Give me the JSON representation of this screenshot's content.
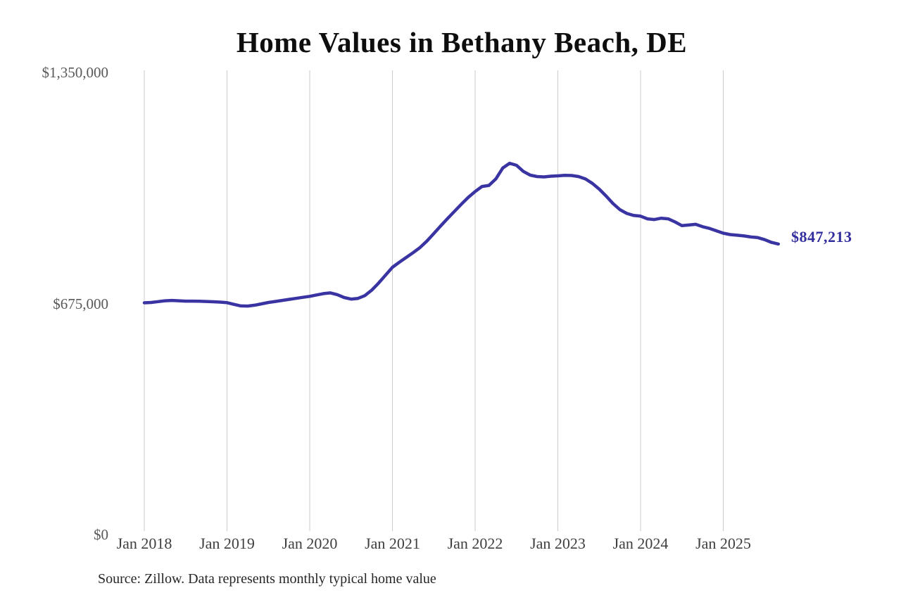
{
  "chart_data": {
    "type": "line",
    "title": "Home Values in Bethany Beach, DE",
    "source_note": "Source: Zillow. Data represents monthly typical home value",
    "end_label": "$847,213",
    "end_value": 847213,
    "line_color": "#3a34a3",
    "end_label_color": "#332e9d",
    "grid_color": "#cbcbcb",
    "legend_position": "none",
    "grid": "vertical-only",
    "y_axis": {
      "min": 0,
      "max": 1350000,
      "ticks": [
        {
          "value": 1350000,
          "label": "$1,350,000"
        },
        {
          "value": 675000,
          "label": "$675,000"
        },
        {
          "value": 0,
          "label": "$0"
        }
      ]
    },
    "x_axis": {
      "tick_labels": [
        "Jan 2018",
        "Jan 2019",
        "Jan 2020",
        "Jan 2021",
        "Jan 2022",
        "Jan 2023",
        "Jan 2024",
        "Jan 2025"
      ],
      "start_month": "2018-01",
      "end_month": "2025-09",
      "interval": "monthly"
    },
    "series": [
      {
        "name": "Typical home value",
        "values": [
          675000,
          676000,
          678500,
          681000,
          682000,
          681000,
          680000,
          680000,
          679500,
          679000,
          678000,
          677000,
          675500,
          670500,
          666000,
          665500,
          668000,
          672000,
          676000,
          679000,
          682000,
          685000,
          688000,
          691000,
          694000,
          698000,
          702000,
          704000,
          699000,
          690500,
          686000,
          688000,
          696000,
          712000,
          733000,
          756000,
          779000,
          794000,
          808000,
          822000,
          837000,
          856000,
          878000,
          900000,
          922000,
          943000,
          964000,
          984000,
          1001000,
          1016000,
          1019000,
          1038000,
          1070000,
          1084000,
          1078000,
          1060000,
          1049000,
          1045000,
          1044000,
          1046000,
          1047000,
          1048500,
          1048000,
          1045000,
          1038000,
          1025000,
          1008000,
          988000,
          966000,
          948000,
          937000,
          931000,
          929000,
          921000,
          919000,
          923000,
          921000,
          912000,
          901000,
          903000,
          905000,
          898000,
          893000,
          886000,
          879000,
          875000,
          873000,
          871000,
          868000,
          866000,
          860000,
          852000,
          847213
        ]
      }
    ]
  }
}
